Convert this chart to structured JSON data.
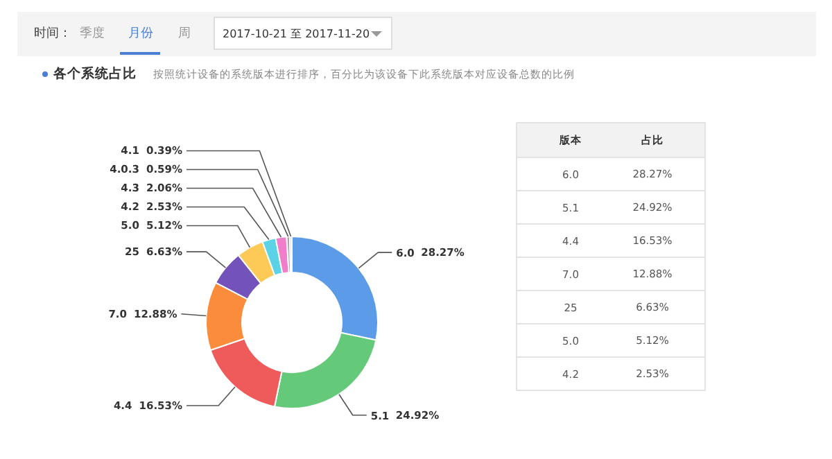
{
  "chart_data": {
    "type": "donut",
    "title": "各个系统占比",
    "subtitle": "按照统计设备的系统版本进行排序，百分比为该设备下此系统版本对应设备总数的比例",
    "categories": [
      "6.0",
      "5.1",
      "4.4",
      "7.0",
      "25",
      "5.0",
      "4.2",
      "4.3",
      "4.0.3",
      "4.1"
    ],
    "values": [
      28.27,
      24.92,
      16.53,
      12.88,
      6.63,
      5.12,
      2.53,
      2.06,
      0.59,
      0.39
    ],
    "colors": [
      "#5b9be8",
      "#65c97a",
      "#ef5a5a",
      "#fb8c3c",
      "#7353bb",
      "#fdc957",
      "#5bd2e6",
      "#f07ecb",
      "#a9a9a9",
      "#d6d6d6"
    ],
    "annotations": [
      "时间：",
      "季度",
      "月份",
      "周",
      "2017-10-21 至 2017-11-20",
      "版本",
      "占比",
      "6.0",
      "28.27%",
      "5.1",
      "24.92%",
      "4.4",
      "16.53%",
      "7.0",
      "12.88%",
      "25",
      "6.63%",
      "5.0",
      "5.12%",
      "4.2",
      "2.53%"
    ],
    "value_labels": [
      "28.27%",
      "24.92%",
      "16.53%",
      "12.88%",
      "6.63%",
      "5.12%",
      "2.53%",
      "2.06%",
      "0.59%",
      "0.39%"
    ]
  }
}
